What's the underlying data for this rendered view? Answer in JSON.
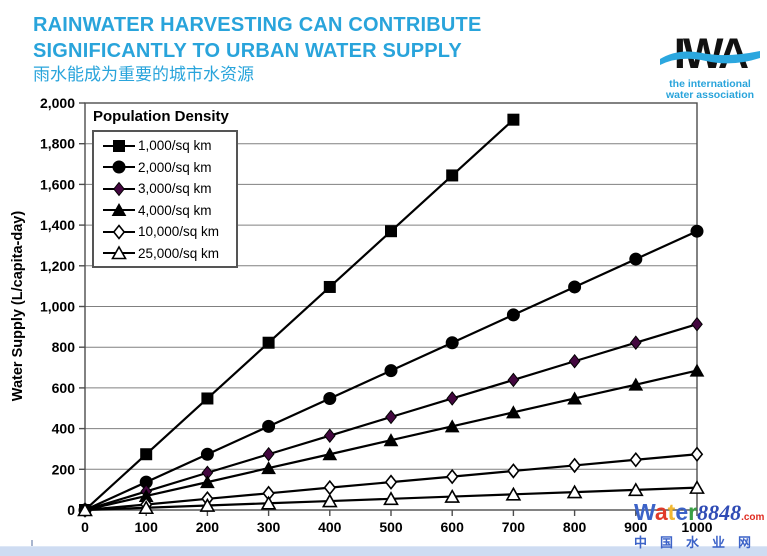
{
  "header": {
    "title_line1": "RAINWATER HARVESTING CAN CONTRIBUTE",
    "title_line2": "SIGNIFICANTLY TO URBAN WATER SUPPLY",
    "subtitle_zh": "雨水能成为重要的城市水资源",
    "accent_color": "#29A4DB"
  },
  "logo": {
    "acronym": "IWA",
    "line1": "the international",
    "line2": "water association",
    "text_color": "#111111",
    "wave_color": "#2BA7DF",
    "sub_color": "#29A4DB"
  },
  "chart_data": {
    "type": "line",
    "title": "",
    "legend_title": "Population Density",
    "legend_position": "upper-left",
    "xlabel": "",
    "ylabel": "Water Supply (L/capita-day)",
    "xlim": [
      0,
      1000
    ],
    "ylim": [
      0,
      2000
    ],
    "x_ticks": [
      0,
      100,
      200,
      300,
      400,
      500,
      600,
      700,
      800,
      900,
      1000
    ],
    "y_ticks": [
      0,
      200,
      400,
      600,
      800,
      1000,
      1200,
      1400,
      1600,
      1800,
      2000
    ],
    "grid": "horizontal",
    "line_color": "#000000",
    "gridline_color": "#808080",
    "frame_color": "#4d4d4d",
    "series": [
      {
        "name": "1,000/sq km",
        "marker": "square",
        "fill": "filled",
        "marker_color": "#000000",
        "x": [
          0,
          100,
          200,
          300,
          400,
          500,
          600,
          700
        ],
        "values": [
          0,
          274,
          548,
          822,
          1096,
          1370,
          1644,
          1918
        ]
      },
      {
        "name": "2,000/sq km",
        "marker": "circle",
        "fill": "filled",
        "marker_color": "#000000",
        "x": [
          0,
          100,
          200,
          300,
          400,
          500,
          600,
          700,
          800,
          900,
          1000
        ],
        "values": [
          0,
          137,
          274,
          411,
          548,
          685,
          822,
          959,
          1096,
          1233,
          1370
        ]
      },
      {
        "name": "3,000/sq km",
        "marker": "diamond",
        "fill": "filled",
        "marker_color": "#43073F",
        "x": [
          0,
          100,
          200,
          300,
          400,
          500,
          600,
          700,
          800,
          900,
          1000
        ],
        "values": [
          0,
          91,
          183,
          274,
          365,
          457,
          548,
          639,
          731,
          822,
          913
        ]
      },
      {
        "name": "4,000/sq km",
        "marker": "triangle",
        "fill": "filled",
        "marker_color": "#000000",
        "x": [
          0,
          100,
          200,
          300,
          400,
          500,
          600,
          700,
          800,
          900,
          1000
        ],
        "values": [
          0,
          69,
          137,
          206,
          274,
          343,
          411,
          480,
          548,
          616,
          685
        ]
      },
      {
        "name": "10,000/sq km",
        "marker": "diamond",
        "fill": "open",
        "marker_color": "#ffffff",
        "x": [
          0,
          100,
          200,
          300,
          400,
          500,
          600,
          700,
          800,
          900,
          1000
        ],
        "values": [
          0,
          27,
          55,
          82,
          110,
          137,
          164,
          192,
          219,
          247,
          274
        ]
      },
      {
        "name": "25,000/sq km",
        "marker": "triangle",
        "fill": "open",
        "marker_color": "#ffffff",
        "x": [
          0,
          100,
          200,
          300,
          400,
          500,
          600,
          700,
          800,
          900,
          1000
        ],
        "values": [
          0,
          11,
          22,
          33,
          44,
          55,
          66,
          77,
          88,
          99,
          110
        ]
      }
    ]
  },
  "watermark": {
    "word_letters": [
      {
        "ch": "W",
        "color": "#3C63C8"
      },
      {
        "ch": "a",
        "color": "#E03A2A"
      },
      {
        "ch": "t",
        "color": "#F2B832"
      },
      {
        "ch": "e",
        "color": "#3C63C8"
      },
      {
        "ch": "r",
        "color": "#3AA045"
      }
    ],
    "number": "8848",
    "number_color": "#2F4BB5",
    "com": ".com",
    "com_color": "#E02B20",
    "line2": "中国水业网",
    "line2_color": "#3C63C8"
  }
}
